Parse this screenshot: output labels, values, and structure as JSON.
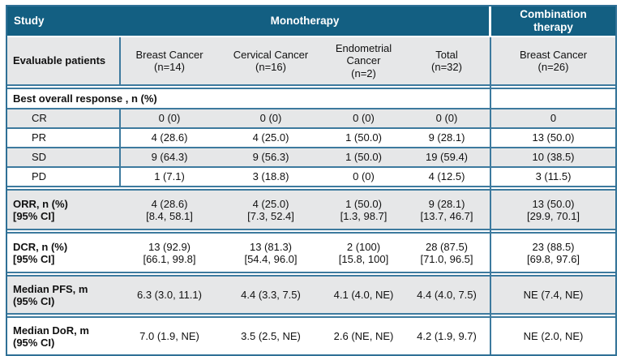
{
  "colors": {
    "header_bg": "#135F82",
    "header_text": "#FFFFFF",
    "row_alt_bg": "#E6E7E8",
    "border": "#3D7A9E",
    "body_text": "#111111"
  },
  "header": {
    "study": "Study",
    "monotherapy": "Monotherapy",
    "combination_therapy": "Combination therapy"
  },
  "evaluable": {
    "label": "Evaluable patients",
    "columns": [
      {
        "name": "Breast Cancer",
        "n": "(n=14)"
      },
      {
        "name": "Cervical Cancer",
        "n": "(n=16)"
      },
      {
        "name": "Endometrial Cancer",
        "n": "(n=2)"
      },
      {
        "name": "Total",
        "n": "(n=32)"
      },
      {
        "name": "Breast Cancer",
        "n": "(n=26)"
      }
    ]
  },
  "sections": {
    "best_overall_response": "Best overall response , n (%)"
  },
  "response_rows": [
    {
      "label": "CR",
      "values": [
        "0 (0)",
        "0 (0)",
        "0 (0)",
        "0 (0)",
        "0"
      ]
    },
    {
      "label": "PR",
      "values": [
        "4 (28.6)",
        "4 (25.0)",
        "1 (50.0)",
        "9 (28.1)",
        "13 (50.0)"
      ]
    },
    {
      "label": "SD",
      "values": [
        "9 (64.3)",
        "9 (56.3)",
        "1 (50.0)",
        "19 (59.4)",
        "10 (38.5)"
      ]
    },
    {
      "label": "PD",
      "values": [
        "1 (7.1)",
        "3 (18.8)",
        "0 (0)",
        "4 (12.5)",
        "3 (11.5)"
      ]
    }
  ],
  "ci_rows": [
    {
      "label": "ORR, n (%)",
      "label2": "[95% CI]",
      "values": [
        {
          "v": "4 (28.6)",
          "ci": "[8.4, 58.1]"
        },
        {
          "v": "4 (25.0)",
          "ci": "[7.3, 52.4]"
        },
        {
          "v": "1 (50.0)",
          "ci": "[1.3, 98.7]"
        },
        {
          "v": "9 (28.1)",
          "ci": "[13.7, 46.7]"
        },
        {
          "v": "13 (50.0)",
          "ci": "[29.9, 70.1]"
        }
      ]
    },
    {
      "label": "DCR, n (%)",
      "label2": "[95% CI]",
      "values": [
        {
          "v": "13 (92.9)",
          "ci": "[66.1, 99.8]"
        },
        {
          "v": "13 (81.3)",
          "ci": "[54.4, 96.0]"
        },
        {
          "v": "2 (100)",
          "ci": "[15.8, 100]"
        },
        {
          "v": "28 (87.5)",
          "ci": "[71.0, 96.5]"
        },
        {
          "v": "23 (88.5)",
          "ci": "[69.8, 97.6]"
        }
      ]
    }
  ],
  "median_rows": [
    {
      "label": "Median PFS, m",
      "label2": "(95% CI)",
      "values": [
        "6.3 (3.0, 11.1)",
        "4.4 (3.3, 7.5)",
        "4.1 (4.0, NE)",
        "4.4 (4.0, 7.5)",
        "NE (7.4, NE)"
      ]
    },
    {
      "label": "Median DoR, m",
      "label2": "(95% CI)",
      "values": [
        "7.0 (1.9, NE)",
        "3.5 (2.5, NE)",
        "2.6 (NE, NE)",
        "4.2 (1.9, 9.7)",
        "NE (2.0, NE)"
      ]
    }
  ]
}
